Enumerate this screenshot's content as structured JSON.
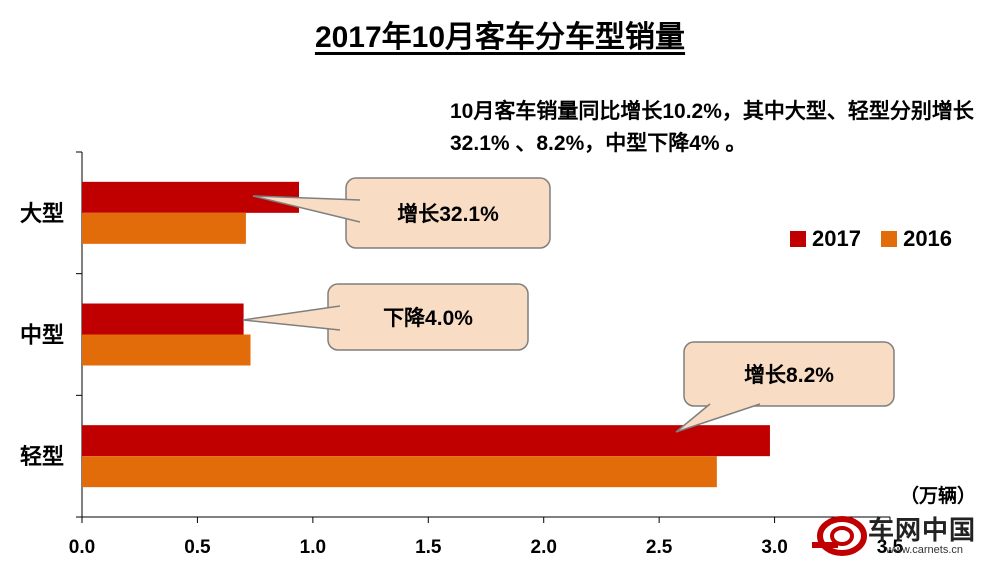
{
  "title": "2017年10月客车分车型销量",
  "annotation": "10月客车销量同比增长10.2%，其中大型、轻型分别增长32.1% 、8.2%，中型下降4% 。",
  "unit_label": "（万辆）",
  "watermark": {
    "text": "车网中国",
    "url": "www.carnets.cn"
  },
  "colors": {
    "2017": "#c00000",
    "2016": "#e36c0a",
    "callout_fill": "#f9dcc4",
    "callout_stroke": "#7f7f7f"
  },
  "chart_data": {
    "type": "bar",
    "orientation": "horizontal",
    "categories": [
      "大型",
      "中型",
      "轻型"
    ],
    "series": [
      {
        "name": "2017",
        "values": [
          0.94,
          0.7,
          2.98
        ]
      },
      {
        "name": "2016",
        "values": [
          0.71,
          0.73,
          2.75
        ]
      }
    ],
    "xlim": [
      0,
      3.5
    ],
    "xticks": [
      "0.0",
      "0.5",
      "1.0",
      "1.5",
      "2.0",
      "2.5",
      "3.0",
      "3.5"
    ],
    "annotations": [
      "增长32.1%",
      "下降4.0%",
      "增长8.2%"
    ],
    "legend_position": "right"
  }
}
